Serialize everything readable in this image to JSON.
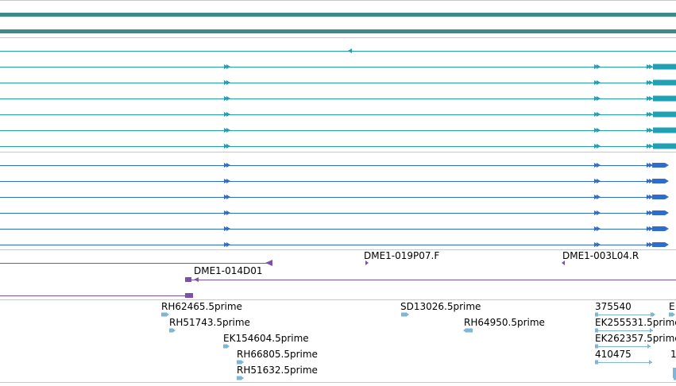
{
  "colors": {
    "top_bars": "#3b8c88",
    "teal": "#1fa0b3",
    "blue": "#2f6dcc",
    "purple": "#7b52a8",
    "light_blue": "#7fb6d8",
    "separator": "#b8b8b8"
  },
  "tracks": {
    "clones": {
      "labels": [
        "DME1-019P07.F",
        "DME1-003L04.R",
        "DME1-014D01"
      ]
    },
    "ests": {
      "labels": [
        "RH62465.5prime",
        "RH51743.5prime",
        "EK154604.5prime",
        "RH66805.5prime",
        "RH51632.5prime",
        "SD13026.5prime",
        "RH64950.5prime",
        "375540",
        "EK255531.5prime",
        "EK262357.5prime",
        "410475",
        "E",
        "1"
      ]
    }
  }
}
